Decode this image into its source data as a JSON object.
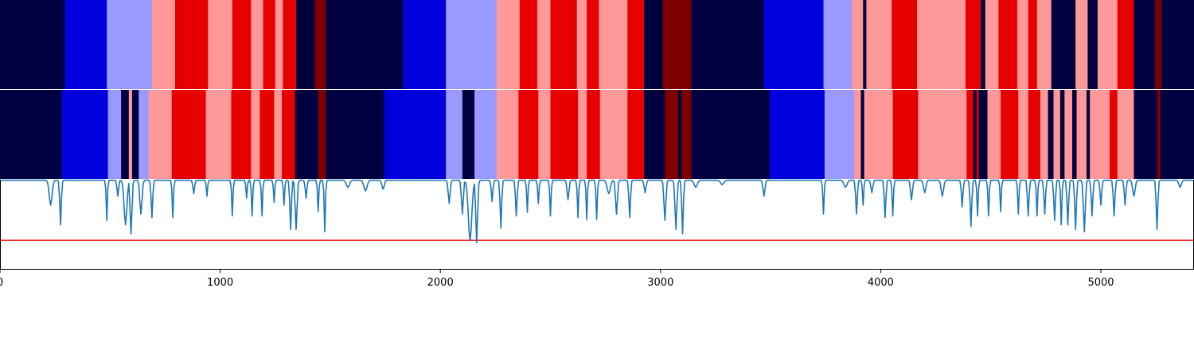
{
  "chart_data": [
    {
      "type": "heatmap",
      "panel": "top",
      "xlim": [
        0,
        5423
      ],
      "colors": {
        "0": "#000040",
        "1": "#0000dd",
        "2": "#9999ff",
        "3": "#ff9999",
        "4": "#e60000",
        "5": "#800000"
      },
      "segments": [
        [
          0,
          295,
          0
        ],
        [
          295,
          485,
          1
        ],
        [
          485,
          690,
          2
        ],
        [
          690,
          795,
          3
        ],
        [
          795,
          945,
          4
        ],
        [
          945,
          1055,
          3
        ],
        [
          1055,
          1140,
          4
        ],
        [
          1140,
          1195,
          3
        ],
        [
          1195,
          1250,
          4
        ],
        [
          1250,
          1285,
          3
        ],
        [
          1285,
          1345,
          4
        ],
        [
          1345,
          1430,
          0
        ],
        [
          1430,
          1480,
          5
        ],
        [
          1480,
          1830,
          0
        ],
        [
          1830,
          2025,
          1
        ],
        [
          2025,
          2255,
          2
        ],
        [
          2255,
          2360,
          3
        ],
        [
          2360,
          2440,
          4
        ],
        [
          2440,
          2500,
          3
        ],
        [
          2500,
          2620,
          4
        ],
        [
          2620,
          2665,
          3
        ],
        [
          2665,
          2720,
          4
        ],
        [
          2720,
          2850,
          3
        ],
        [
          2850,
          2925,
          4
        ],
        [
          2925,
          3010,
          0
        ],
        [
          3010,
          3140,
          5
        ],
        [
          3140,
          3470,
          0
        ],
        [
          3470,
          3740,
          1
        ],
        [
          3740,
          3870,
          2
        ],
        [
          3870,
          3920,
          3
        ],
        [
          3920,
          3935,
          0
        ],
        [
          3935,
          4050,
          3
        ],
        [
          4050,
          4165,
          4
        ],
        [
          4165,
          4385,
          3
        ],
        [
          4385,
          4455,
          4
        ],
        [
          4455,
          4475,
          0
        ],
        [
          4475,
          4535,
          3
        ],
        [
          4535,
          4620,
          4
        ],
        [
          4620,
          4670,
          3
        ],
        [
          4670,
          4710,
          4
        ],
        [
          4710,
          4775,
          3
        ],
        [
          4775,
          4885,
          0
        ],
        [
          4885,
          4940,
          3
        ],
        [
          4940,
          4985,
          0
        ],
        [
          4985,
          5075,
          3
        ],
        [
          5075,
          5150,
          4
        ],
        [
          5150,
          5245,
          0
        ],
        [
          5245,
          5275,
          5
        ],
        [
          5275,
          5423,
          0
        ]
      ]
    },
    {
      "type": "heatmap",
      "panel": "middle",
      "xlim": [
        0,
        5423
      ],
      "colors": {
        "0": "#000040",
        "1": "#0000dd",
        "2": "#9999ff",
        "3": "#ff9999",
        "4": "#e60000",
        "5": "#800000"
      },
      "segments": [
        [
          0,
          280,
          0
        ],
        [
          280,
          490,
          1
        ],
        [
          490,
          550,
          2
        ],
        [
          550,
          585,
          0
        ],
        [
          585,
          600,
          3
        ],
        [
          600,
          630,
          0
        ],
        [
          630,
          675,
          2
        ],
        [
          675,
          780,
          3
        ],
        [
          780,
          935,
          4
        ],
        [
          935,
          1050,
          3
        ],
        [
          1050,
          1140,
          4
        ],
        [
          1140,
          1180,
          3
        ],
        [
          1180,
          1245,
          4
        ],
        [
          1245,
          1280,
          3
        ],
        [
          1280,
          1340,
          4
        ],
        [
          1340,
          1445,
          0
        ],
        [
          1445,
          1480,
          5
        ],
        [
          1480,
          1745,
          0
        ],
        [
          1745,
          2025,
          1
        ],
        [
          2025,
          2100,
          2
        ],
        [
          2100,
          2155,
          0
        ],
        [
          2155,
          2255,
          2
        ],
        [
          2255,
          2355,
          3
        ],
        [
          2355,
          2445,
          4
        ],
        [
          2445,
          2500,
          3
        ],
        [
          2500,
          2625,
          4
        ],
        [
          2625,
          2665,
          3
        ],
        [
          2665,
          2725,
          4
        ],
        [
          2725,
          2850,
          3
        ],
        [
          2850,
          2925,
          4
        ],
        [
          2925,
          3020,
          0
        ],
        [
          3020,
          3080,
          5
        ],
        [
          3080,
          3095,
          0
        ],
        [
          3095,
          3140,
          5
        ],
        [
          3140,
          3495,
          0
        ],
        [
          3495,
          3745,
          1
        ],
        [
          3745,
          3880,
          2
        ],
        [
          3880,
          3910,
          3
        ],
        [
          3910,
          3925,
          0
        ],
        [
          3925,
          4055,
          3
        ],
        [
          4055,
          4170,
          4
        ],
        [
          4170,
          4390,
          3
        ],
        [
          4390,
          4420,
          4
        ],
        [
          4420,
          4435,
          0
        ],
        [
          4435,
          4445,
          4
        ],
        [
          4445,
          4485,
          0
        ],
        [
          4485,
          4545,
          3
        ],
        [
          4545,
          4625,
          4
        ],
        [
          4625,
          4670,
          3
        ],
        [
          4670,
          4725,
          4
        ],
        [
          4725,
          4760,
          3
        ],
        [
          4760,
          4785,
          0
        ],
        [
          4785,
          4815,
          3
        ],
        [
          4815,
          4835,
          0
        ],
        [
          4835,
          4870,
          3
        ],
        [
          4870,
          4890,
          0
        ],
        [
          4890,
          4935,
          3
        ],
        [
          4935,
          4950,
          0
        ],
        [
          4950,
          5040,
          3
        ],
        [
          5040,
          5075,
          4
        ],
        [
          5075,
          5150,
          3
        ],
        [
          5150,
          5255,
          0
        ],
        [
          5255,
          5270,
          5
        ],
        [
          5270,
          5423,
          0
        ]
      ]
    },
    {
      "type": "line",
      "panel": "bottom",
      "xlim": [
        0,
        5423
      ],
      "ylim": [
        0,
        1
      ],
      "xticks": [
        "0",
        "1000",
        "2000",
        "3000",
        "4000",
        "5000"
      ],
      "xtick_values": [
        0,
        1000,
        2000,
        3000,
        4000,
        5000
      ],
      "threshold": 0.32,
      "line_color": "#1f77b4",
      "threshold_color": "#e60000",
      "dips": [
        [
          230,
          0.72,
          18
        ],
        [
          275,
          0.5,
          10
        ],
        [
          485,
          0.55,
          8
        ],
        [
          535,
          0.82,
          10
        ],
        [
          570,
          0.5,
          18
        ],
        [
          595,
          0.4,
          12
        ],
        [
          640,
          0.62,
          14
        ],
        [
          690,
          0.58,
          10
        ],
        [
          785,
          0.58,
          8
        ],
        [
          880,
          0.85,
          10
        ],
        [
          940,
          0.82,
          8
        ],
        [
          1055,
          0.6,
          8
        ],
        [
          1120,
          0.8,
          8
        ],
        [
          1145,
          0.6,
          8
        ],
        [
          1190,
          0.6,
          8
        ],
        [
          1245,
          0.75,
          8
        ],
        [
          1290,
          0.72,
          8
        ],
        [
          1320,
          0.45,
          10
        ],
        [
          1345,
          0.45,
          12
        ],
        [
          1390,
          0.8,
          10
        ],
        [
          1445,
          0.65,
          8
        ],
        [
          1475,
          0.42,
          8
        ],
        [
          1580,
          0.92,
          20
        ],
        [
          1660,
          0.88,
          20
        ],
        [
          1740,
          0.9,
          15
        ],
        [
          2040,
          0.74,
          12
        ],
        [
          2100,
          0.62,
          12
        ],
        [
          2135,
          0.32,
          22
        ],
        [
          2165,
          0.3,
          12
        ],
        [
          2235,
          0.76,
          10
        ],
        [
          2275,
          0.46,
          10
        ],
        [
          2345,
          0.6,
          10
        ],
        [
          2395,
          0.64,
          8
        ],
        [
          2445,
          0.74,
          8
        ],
        [
          2500,
          0.6,
          8
        ],
        [
          2580,
          0.78,
          12
        ],
        [
          2625,
          0.58,
          8
        ],
        [
          2665,
          0.56,
          8
        ],
        [
          2710,
          0.56,
          8
        ],
        [
          2765,
          0.85,
          20
        ],
        [
          2800,
          0.62,
          12
        ],
        [
          2860,
          0.58,
          10
        ],
        [
          2930,
          0.86,
          12
        ],
        [
          3020,
          0.55,
          12
        ],
        [
          3070,
          0.45,
          12
        ],
        [
          3100,
          0.4,
          10
        ],
        [
          3160,
          0.92,
          20
        ],
        [
          3280,
          0.95,
          20
        ],
        [
          3470,
          0.82,
          12
        ],
        [
          3740,
          0.62,
          8
        ],
        [
          3840,
          0.92,
          20
        ],
        [
          3890,
          0.62,
          10
        ],
        [
          3920,
          0.72,
          8
        ],
        [
          3960,
          0.86,
          12
        ],
        [
          4020,
          0.58,
          10
        ],
        [
          4055,
          0.6,
          8
        ],
        [
          4140,
          0.78,
          12
        ],
        [
          4200,
          0.86,
          15
        ],
        [
          4280,
          0.82,
          15
        ],
        [
          4370,
          0.7,
          10
        ],
        [
          4410,
          0.48,
          10
        ],
        [
          4440,
          0.6,
          8
        ],
        [
          4490,
          0.6,
          8
        ],
        [
          4545,
          0.65,
          8
        ],
        [
          4625,
          0.62,
          8
        ],
        [
          4670,
          0.6,
          10
        ],
        [
          4710,
          0.6,
          8
        ],
        [
          4745,
          0.62,
          10
        ],
        [
          4790,
          0.55,
          10
        ],
        [
          4820,
          0.5,
          8
        ],
        [
          4850,
          0.5,
          10
        ],
        [
          4885,
          0.45,
          10
        ],
        [
          4925,
          0.42,
          12
        ],
        [
          4960,
          0.6,
          10
        ],
        [
          5000,
          0.72,
          10
        ],
        [
          5060,
          0.6,
          10
        ],
        [
          5110,
          0.72,
          10
        ],
        [
          5150,
          0.82,
          15
        ],
        [
          5255,
          0.45,
          10
        ],
        [
          5360,
          0.92,
          15
        ]
      ]
    }
  ]
}
